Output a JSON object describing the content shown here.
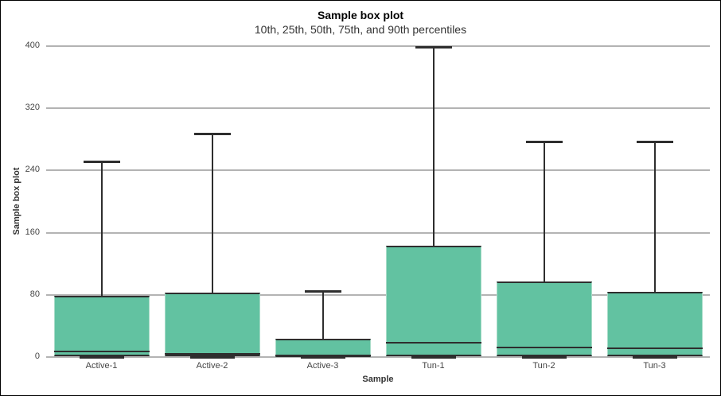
{
  "chart_data": {
    "type": "box",
    "title": "Sample box plot",
    "subtitle": "10th, 25th, 50th, 75th, and 90th percentiles",
    "xlabel": "Sample",
    "ylabel": "Sample box plot",
    "ylim": [
      0,
      400
    ],
    "yticks": [
      0,
      80,
      160,
      240,
      320,
      400
    ],
    "grid": true,
    "legend_position": "none",
    "percentile_labels": [
      "10th",
      "25th",
      "50th",
      "75th",
      "90th"
    ],
    "categories": [
      "Active-1",
      "Active-2",
      "Active-3",
      "Tun-1",
      "Tun-2",
      "Tun-3"
    ],
    "boxes": [
      {
        "category": "Active-1",
        "p10": 0,
        "p25": 2,
        "p50": 7,
        "p75": 78,
        "p90": 252
      },
      {
        "category": "Active-2",
        "p10": 0,
        "p25": 2,
        "p50": 4,
        "p75": 82,
        "p90": 287
      },
      {
        "category": "Active-3",
        "p10": 0,
        "p25": 1,
        "p50": 2,
        "p75": 22,
        "p90": 85
      },
      {
        "category": "Tun-1",
        "p10": 0,
        "p25": 2,
        "p50": 18,
        "p75": 142,
        "p90": 399
      },
      {
        "category": "Tun-2",
        "p10": 0,
        "p25": 2,
        "p50": 12,
        "p75": 96,
        "p90": 277
      },
      {
        "category": "Tun-3",
        "p10": 0,
        "p25": 2,
        "p50": 11,
        "p75": 83,
        "p90": 277
      }
    ],
    "colors": {
      "box_fill": "#62C2A1",
      "box_side_edge": "#A8DCC8",
      "line_dark": "#2E2E2E",
      "gridline": "#B3B3B3",
      "tick_text": "#444444",
      "title_text": "#000000"
    }
  }
}
